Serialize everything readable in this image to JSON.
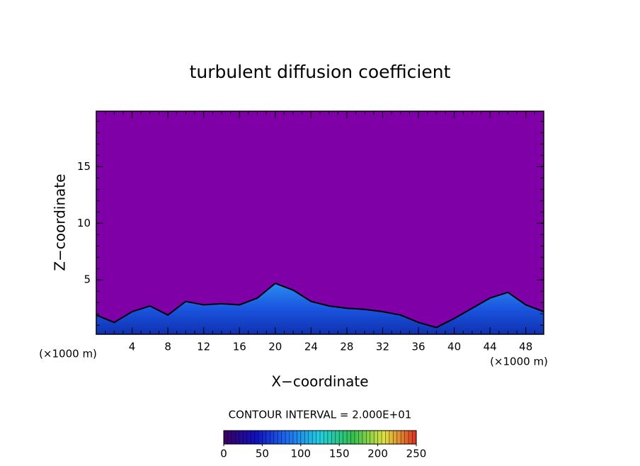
{
  "chart_data": {
    "type": "contour",
    "title": "turbulent diffusion coefficient",
    "xlabel": "X−coordinate",
    "ylabel": "Z−coordinate",
    "xunit": "(×1000 m)",
    "yunit": "(×1000 m)",
    "xlim": [
      0,
      50
    ],
    "ylim": [
      0.2,
      19.9
    ],
    "xticks": [
      4,
      8,
      12,
      16,
      20,
      24,
      28,
      32,
      36,
      40,
      44,
      48
    ],
    "yticks": [
      5,
      10,
      15
    ],
    "background_color": "#7f00a6",
    "x": [
      0,
      2,
      4,
      6,
      8,
      10,
      12,
      14,
      16,
      18,
      20,
      22,
      24,
      26,
      28,
      30,
      32,
      34,
      36,
      38,
      40,
      42,
      44,
      46,
      48,
      50
    ],
    "values": [
      1.9,
      1.25,
      2.2,
      2.7,
      1.9,
      3.1,
      2.8,
      2.9,
      2.8,
      3.4,
      4.7,
      4.1,
      3.1,
      2.7,
      2.5,
      2.4,
      2.2,
      1.9,
      1.25,
      0.8,
      1.6,
      2.5,
      3.4,
      3.9,
      2.8,
      2.2
    ],
    "colorbar": {
      "title": "CONTOUR INTERVAL = 2.000E+01",
      "clim": [
        0,
        250
      ],
      "ticks": [
        0,
        50,
        100,
        150,
        200,
        250
      ],
      "colormap": [
        "#3a0060",
        "#1010c0",
        "#1e6ff0",
        "#20d0e0",
        "#30c050",
        "#e0e040",
        "#e03020"
      ]
    }
  }
}
